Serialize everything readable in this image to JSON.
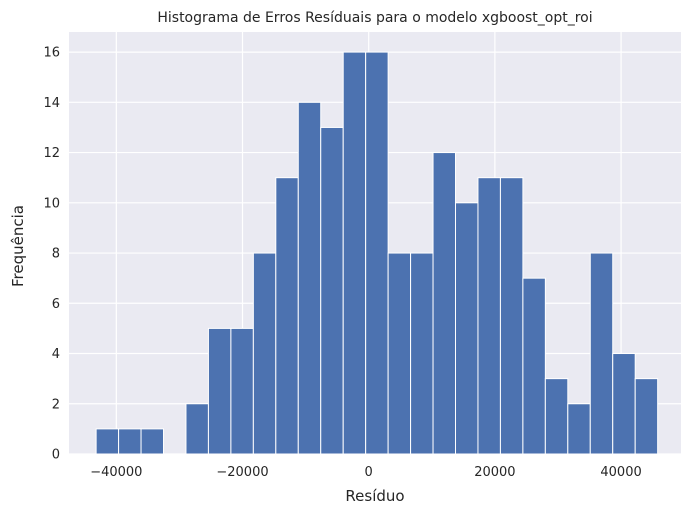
{
  "chart_data": {
    "type": "bar",
    "title": "Histograma de Erros Resíduais para o modelo xgboost_opt_roi",
    "xlabel": "Resíduo",
    "ylabel": "Frequência",
    "xlim": [
      -47500,
      49500
    ],
    "ylim": [
      0,
      16.8
    ],
    "x_ticks": [
      -40000,
      -20000,
      0,
      20000,
      40000
    ],
    "x_tick_labels": [
      "−40000",
      "−20000",
      "0",
      "20000",
      "40000"
    ],
    "y_ticks": [
      0,
      2,
      4,
      6,
      8,
      10,
      12,
      14,
      16
    ],
    "y_tick_labels": [
      "0",
      "2",
      "4",
      "6",
      "8",
      "10",
      "12",
      "14",
      "16"
    ],
    "bin_edges": [
      -43200,
      -39640,
      -36080,
      -32520,
      -28960,
      -25400,
      -21840,
      -18280,
      -14720,
      -11160,
      -7600,
      -4040,
      -480,
      3080,
      6640,
      10200,
      13760,
      17320,
      20880,
      24440,
      28000,
      31560,
      35120,
      38680,
      42240,
      45800
    ],
    "values": [
      1,
      1,
      1,
      0,
      2,
      5,
      5,
      8,
      11,
      14,
      13,
      16,
      16,
      8,
      8,
      12,
      10,
      11,
      11,
      7,
      3,
      2,
      8,
      4,
      3
    ],
    "grid": true,
    "colors": {
      "bar": "#4c72b0",
      "plot_background": "#eaeaf2",
      "grid": "#ffffff",
      "text": "#262626"
    }
  }
}
